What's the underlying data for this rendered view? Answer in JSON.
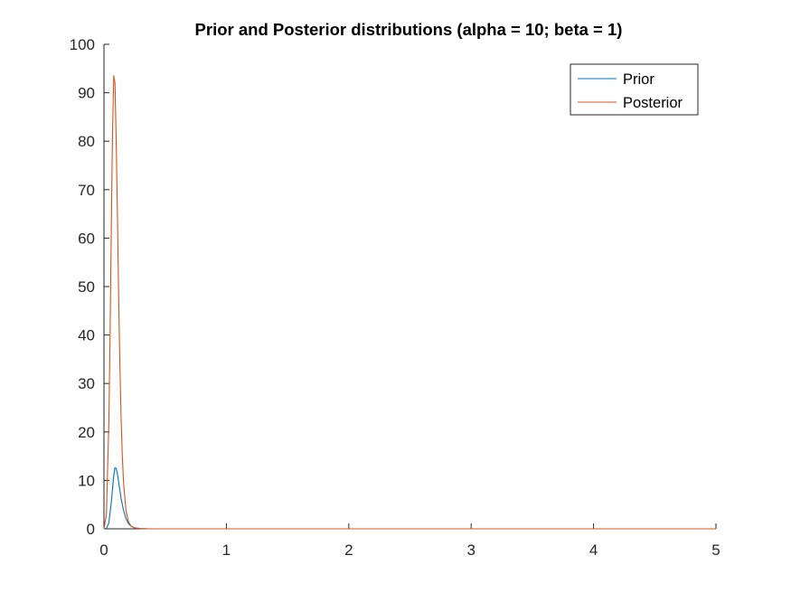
{
  "window": {
    "colors": {
      "background": "#ffffff",
      "axis": "#262626"
    }
  },
  "chart_data": {
    "type": "line",
    "title": "Prior and Posterior distributions (alpha = 10; beta = 1)",
    "xlabel": "",
    "ylabel": "",
    "xlim": [
      0,
      5
    ],
    "ylim": [
      0,
      100
    ],
    "xticks": [
      0,
      1,
      2,
      3,
      4,
      5
    ],
    "xtick_labels": [
      "0",
      "1",
      "2",
      "3",
      "4",
      "5"
    ],
    "yticks": [
      0,
      10,
      20,
      30,
      40,
      50,
      60,
      70,
      80,
      90,
      100
    ],
    "ytick_labels": [
      "0",
      "10",
      "20",
      "30",
      "40",
      "50",
      "60",
      "70",
      "80",
      "90",
      "100"
    ],
    "grid": false,
    "legend": {
      "position": "top-right"
    },
    "series": [
      {
        "name": "Prior",
        "color": "#0072BD",
        "x": [
          0,
          0.02,
          0.04,
          0.06,
          0.08,
          0.09,
          0.1,
          0.11,
          0.12,
          0.14,
          0.16,
          0.18,
          0.2,
          0.22,
          0.25,
          0.3,
          0.35,
          0.4,
          0.5,
          1,
          2,
          3,
          4,
          5
        ],
        "y": [
          0,
          0.1,
          1.2,
          5.5,
          11.0,
          12.6,
          12.5,
          11.4,
          9.6,
          6.3,
          3.8,
          2.1,
          1.1,
          0.55,
          0.2,
          0.05,
          0.01,
          0,
          0,
          0,
          0,
          0,
          0,
          0
        ]
      },
      {
        "name": "Posterior",
        "color": "#D95319",
        "x": [
          0,
          0.02,
          0.04,
          0.05,
          0.06,
          0.07,
          0.08,
          0.09,
          0.1,
          0.11,
          0.12,
          0.13,
          0.14,
          0.15,
          0.16,
          0.18,
          0.2,
          0.22,
          0.25,
          0.3,
          0.35,
          0.4,
          0.5,
          1,
          2,
          3,
          4,
          5
        ],
        "y": [
          0,
          3,
          22,
          40,
          62,
          82,
          93.5,
          92,
          80,
          65,
          48,
          34,
          23,
          15,
          9.5,
          3.8,
          1.5,
          0.6,
          0.18,
          0.03,
          0.01,
          0,
          0,
          0,
          0,
          0,
          0,
          0
        ]
      }
    ]
  }
}
